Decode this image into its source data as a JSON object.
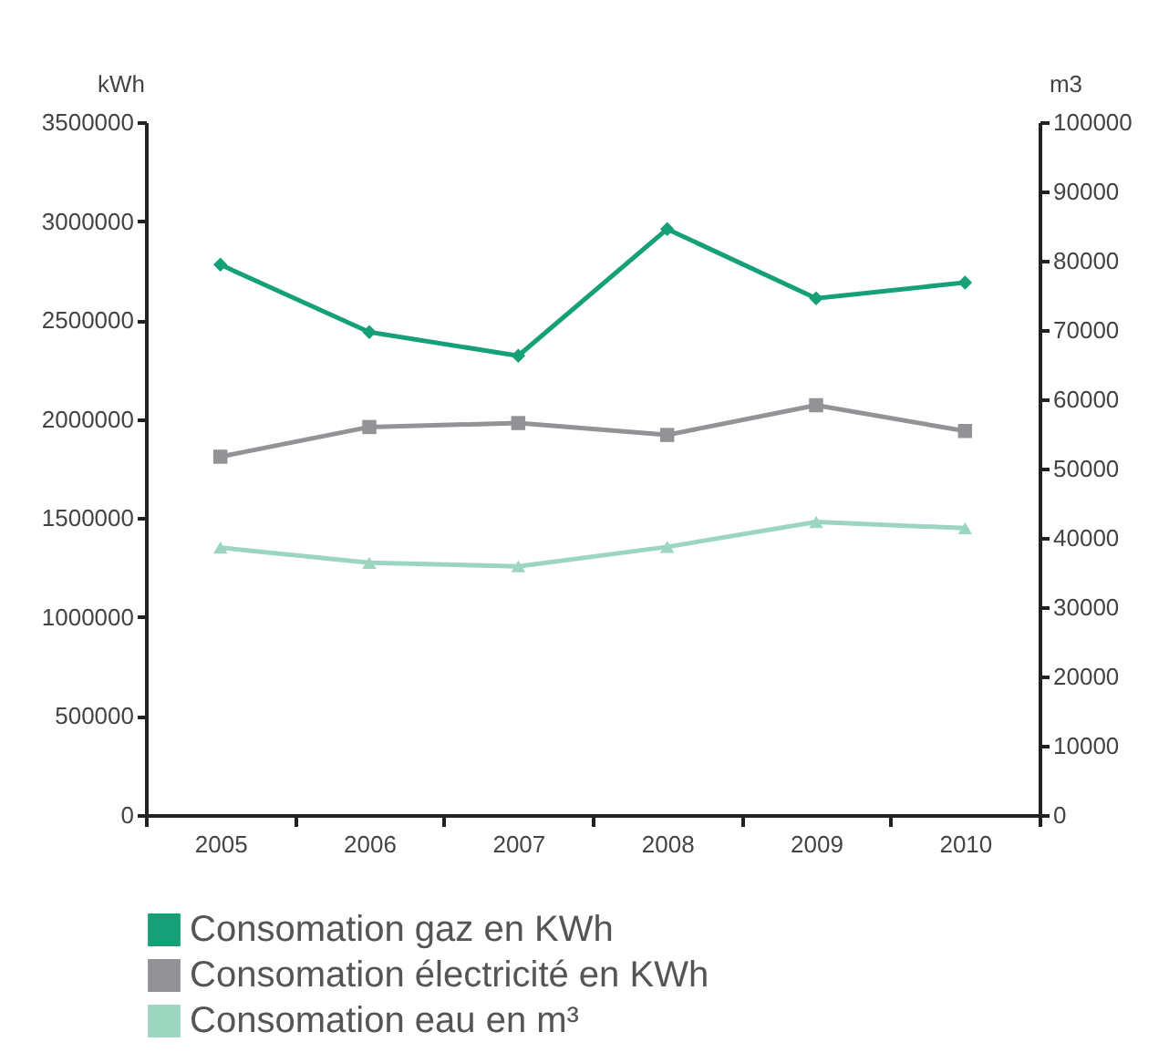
{
  "chart_data": {
    "type": "line",
    "ylabel": "kWh",
    "y2label": "m3",
    "categories": [
      "2005",
      "2006",
      "2007",
      "2008",
      "2009",
      "2010"
    ],
    "series": [
      {
        "name": "Consomation gaz en KWh",
        "color": "#15a078",
        "marker": "diamond",
        "values": [
          2780000,
          2440000,
          2320000,
          2960000,
          2610000,
          2690000
        ]
      },
      {
        "name": "Consomation électricité en KWh",
        "color": "#929297",
        "marker": "square",
        "values": [
          1810000,
          1960000,
          1980000,
          1920000,
          2070000,
          1940000
        ]
      },
      {
        "name": "Consomation eau en m³",
        "color": "#9dd6c0",
        "marker": "triangle",
        "axis": "y2",
        "values": [
          38600,
          36400,
          35900,
          38700,
          42300,
          41400
        ]
      }
    ],
    "ylim": [
      0,
      3500000
    ],
    "yticks": [
      0,
      500000,
      1000000,
      1500000,
      2000000,
      2500000,
      3000000,
      3500000
    ],
    "y2lim": [
      0,
      100000
    ],
    "y2ticks": [
      0,
      10000,
      20000,
      30000,
      40000,
      50000,
      60000,
      70000,
      80000,
      90000,
      100000
    ],
    "grid": false,
    "legend": "bottom"
  }
}
